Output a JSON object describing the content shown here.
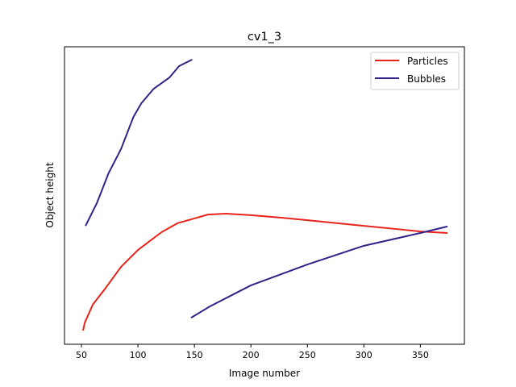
{
  "chart_data": {
    "type": "line",
    "title": "cv1_3",
    "xlabel": "Image number",
    "ylabel": "Object height",
    "xlim": [
      35,
      389
    ],
    "ylim": [
      0,
      100
    ],
    "y_ticks_shown": false,
    "xticks": [
      50,
      100,
      150,
      200,
      250,
      300,
      350
    ],
    "grid": false,
    "legend_position": "top-right",
    "series": [
      {
        "name": "Particles",
        "color": "#e8231a",
        "segments": [
          [
            [
              51.4,
              4.6
            ],
            [
              53,
              7.3
            ],
            [
              60,
              13.3
            ],
            [
              71,
              18.7
            ],
            [
              85,
              26
            ],
            [
              100,
              31.7
            ],
            [
              121,
              37.7
            ],
            [
              135,
              40.7
            ],
            [
              150,
              42.3
            ],
            [
              162,
              43.6
            ],
            [
              178,
              43.9
            ],
            [
              200,
              43.4
            ],
            [
              228,
              42.5
            ],
            [
              250,
              41.7
            ],
            [
              300,
              39.8
            ],
            [
              335,
              38.5
            ],
            [
              350,
              37.9
            ],
            [
              374,
              37.4
            ]
          ]
        ]
      },
      {
        "name": "Bubbles",
        "color": "#2e2389",
        "segments": [
          [
            [
              53.6,
              39.8
            ],
            [
              63.6,
              47.4
            ],
            [
              74,
              57.5
            ],
            [
              85,
              65.6
            ],
            [
              96,
              76.4
            ],
            [
              103,
              81
            ],
            [
              114,
              85.9
            ],
            [
              128,
              89.7
            ],
            [
              136.4,
              93.5
            ],
            [
              148,
              95.7
            ]
          ],
          [
            [
              147,
              8.9
            ],
            [
              163.6,
              12.7
            ],
            [
              200,
              19.8
            ],
            [
              250,
              26.8
            ],
            [
              300,
              33.1
            ],
            [
              350,
              37.4
            ],
            [
              374,
              39.6
            ]
          ]
        ]
      }
    ]
  }
}
